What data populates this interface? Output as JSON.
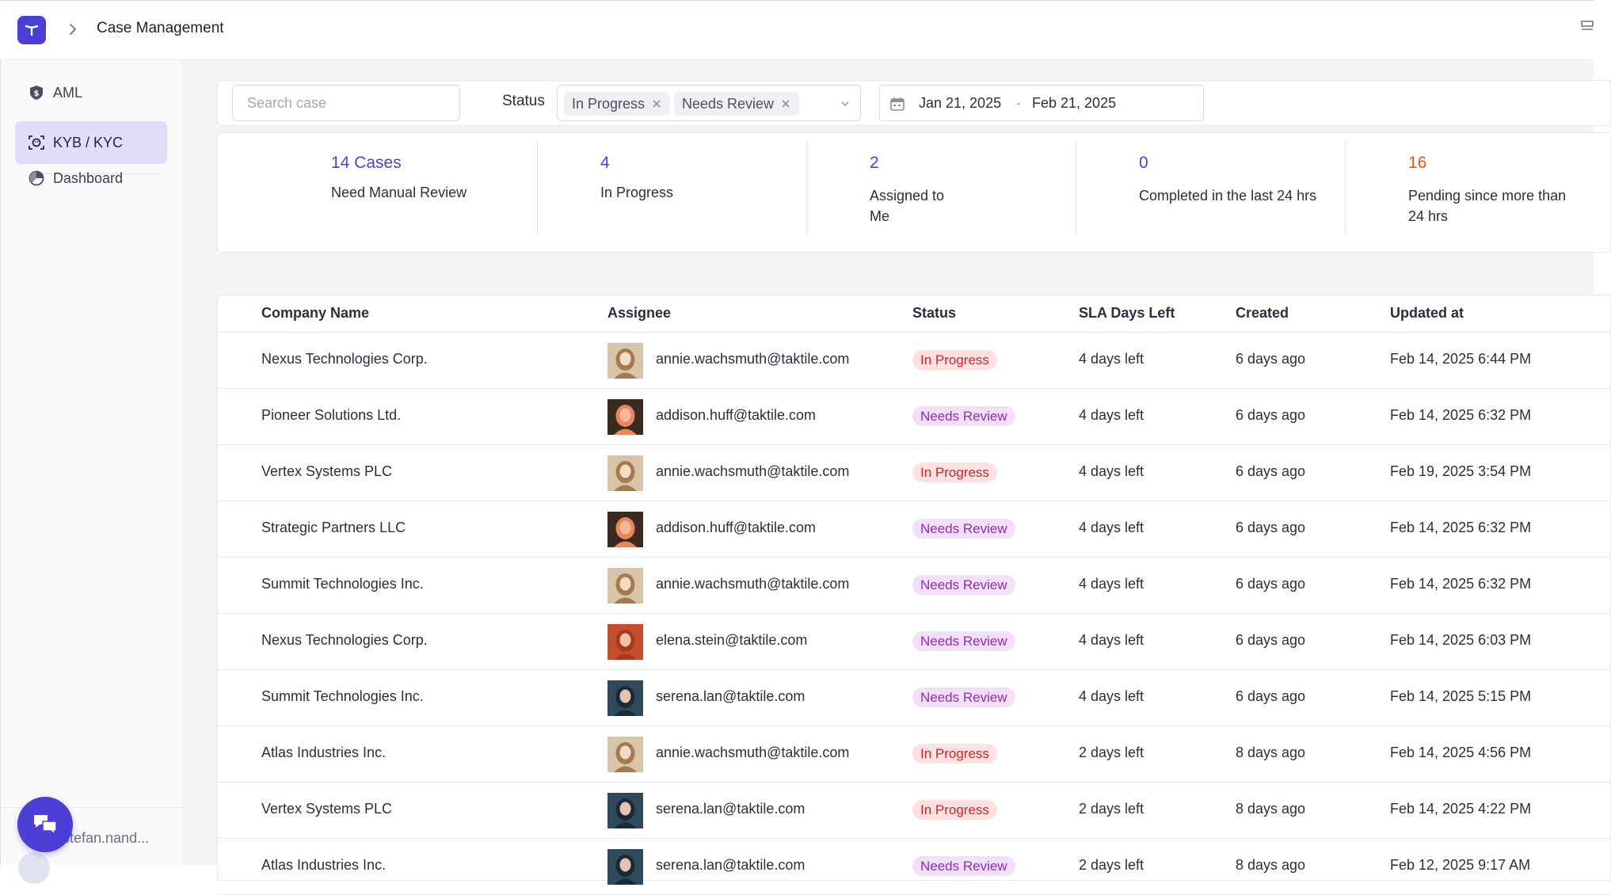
{
  "header": {
    "title": "Case Management"
  },
  "sidebar": {
    "items": [
      {
        "label": "AML",
        "icon": "shield-icon",
        "active": false
      },
      {
        "label": "KYB / KYC",
        "icon": "face-scan-icon",
        "active": true
      },
      {
        "label": "Dashboard",
        "icon": "pie-chart-icon",
        "active": false
      }
    ],
    "user": {
      "name": "stefan.nand..."
    }
  },
  "filters": {
    "search_placeholder": "Search case",
    "status_label": "Status",
    "status_chips": [
      "In Progress",
      "Needs Review"
    ],
    "date_from": "Jan 21, 2025",
    "date_separator": "-",
    "date_to": "Feb 21, 2025"
  },
  "stats": [
    {
      "value": "14 Cases",
      "label": "Need Manual Review"
    },
    {
      "value": "4",
      "label": "In Progress"
    },
    {
      "value": "2",
      "label": "Assigned to Me"
    },
    {
      "value": "0",
      "label": "Completed in the last 24 hrs"
    },
    {
      "value": "16",
      "label": "Pending since more than 24 hrs"
    }
  ],
  "table": {
    "columns": [
      "Company Name",
      "Assignee",
      "Status",
      "SLA Days Left",
      "Created",
      "Updated at"
    ],
    "rows": [
      {
        "company": "Nexus Technologies Corp.",
        "assignee": "annie.wachsmuth@taktile.com",
        "status": "In Progress",
        "sla": "4 days left",
        "created": "6 days ago",
        "updated": "Feb 14, 2025 6:44 PM"
      },
      {
        "company": "Pioneer Solutions Ltd.",
        "assignee": "addison.huff@taktile.com",
        "status": "Needs Review",
        "sla": "4 days left",
        "created": "6 days ago",
        "updated": "Feb 14, 2025 6:32 PM"
      },
      {
        "company": "Vertex Systems PLC",
        "assignee": "annie.wachsmuth@taktile.com",
        "status": "In Progress",
        "sla": "4 days left",
        "created": "6 days ago",
        "updated": "Feb 19, 2025 3:54 PM"
      },
      {
        "company": "Strategic Partners LLC",
        "assignee": "addison.huff@taktile.com",
        "status": "Needs Review",
        "sla": "4 days left",
        "created": "6 days ago",
        "updated": "Feb 14, 2025 6:32 PM"
      },
      {
        "company": "Summit Technologies Inc.",
        "assignee": "annie.wachsmuth@taktile.com",
        "status": "Needs Review",
        "sla": "4 days left",
        "created": "6 days ago",
        "updated": "Feb 14, 2025 6:32 PM"
      },
      {
        "company": "Nexus Technologies Corp.",
        "assignee": "elena.stein@taktile.com",
        "status": "Needs Review",
        "sla": "4 days left",
        "created": "6 days ago",
        "updated": "Feb 14, 2025 6:03 PM"
      },
      {
        "company": "Summit Technologies Inc.",
        "assignee": "serena.lan@taktile.com",
        "status": "Needs Review",
        "sla": "4 days left",
        "created": "6 days ago",
        "updated": "Feb 14, 2025 5:15 PM"
      },
      {
        "company": "Atlas Industries Inc.",
        "assignee": "annie.wachsmuth@taktile.com",
        "status": "In Progress",
        "sla": "2 days left",
        "created": "8 days ago",
        "updated": "Feb 14, 2025 4:56 PM"
      },
      {
        "company": "Vertex Systems PLC",
        "assignee": "serena.lan@taktile.com",
        "status": "In Progress",
        "sla": "2 days left",
        "created": "8 days ago",
        "updated": "Feb 14, 2025 4:22 PM"
      },
      {
        "company": "Atlas Industries Inc.",
        "assignee": "serena.lan@taktile.com",
        "status": "Needs Review",
        "sla": "2 days left",
        "created": "8 days ago",
        "updated": "Feb 12, 2025 9:17 AM"
      }
    ]
  },
  "colors": {
    "accent": "#4c3fd6",
    "warn": "#e0561e",
    "in_progress_bg": "#fde1e1",
    "in_progress_fg": "#c4282e",
    "needs_review_bg": "#f4dffa",
    "needs_review_fg": "#8b2fae"
  }
}
